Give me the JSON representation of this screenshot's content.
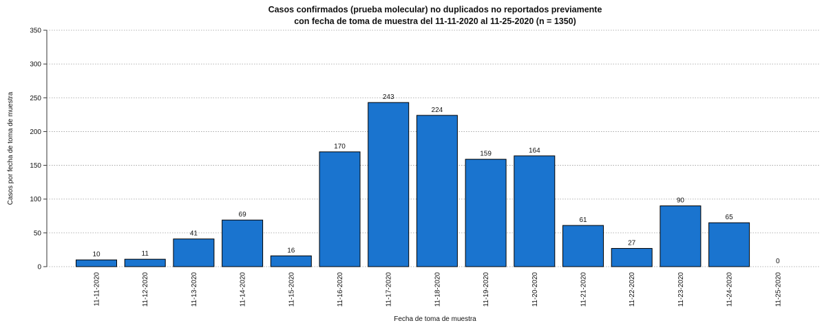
{
  "chart_data": {
    "type": "bar",
    "title": "Casos confirmados (prueba molecular) no duplicados no reportados previamente",
    "subtitle": "con fecha de toma de muestra del 11-11-2020 al 11-25-2020 (n = 1350)",
    "x_label": "Fecha de toma de muestra",
    "y_label": "Casos por fecha de toma de muestra",
    "categories": [
      "11-11-2020",
      "11-12-2020",
      "11-13-2020",
      "11-14-2020",
      "11-15-2020",
      "11-16-2020",
      "11-17-2020",
      "11-18-2020",
      "11-19-2020",
      "11-20-2020",
      "11-21-2020",
      "11-22-2020",
      "11-23-2020",
      "11-24-2020",
      "11-25-2020"
    ],
    "values": [
      10,
      11,
      41,
      69,
      16,
      170,
      243,
      224,
      159,
      164,
      61,
      27,
      90,
      65,
      0
    ],
    "color": "#1a74cf",
    "ylim": [
      0,
      350
    ],
    "yticks": [
      0,
      50,
      100,
      150,
      200,
      250,
      300,
      350
    ],
    "grid": true
  }
}
